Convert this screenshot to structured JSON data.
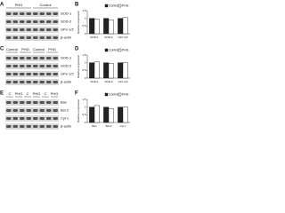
{
  "blots": [
    {
      "panel": "A",
      "groups": [
        "PHG",
        "Control"
      ],
      "rows": [
        "SOD-1",
        "SOD-2",
        "GPx-1/2",
        "β-actin"
      ]
    },
    {
      "panel": "C",
      "groups": [
        "Control",
        "PHG",
        "Control",
        "PHG"
      ],
      "rows": [
        "SOD-1",
        "SOD-2",
        "GPx-1/2",
        "β-actin"
      ]
    },
    {
      "panel": "E",
      "groups": [
        "C",
        "PHG",
        "C",
        "PHG",
        "C",
        "PHG"
      ],
      "rows": [
        "Bax",
        "Bcl-2",
        "Cyt c",
        "β-actin"
      ]
    }
  ],
  "chart_data": [
    {
      "type": "bar",
      "panel": "B",
      "ylabel": "Relative expression",
      "categories": [
        "SOD-1",
        "SOD-2",
        "GPx-1/2"
      ],
      "series": [
        {
          "name": "Control",
          "color": "#222222",
          "values": [
            1,
            1,
            1
          ]
        },
        {
          "name": "PHG",
          "color": "#ffffff",
          "values": [
            0.95,
            0.9,
            1.05
          ]
        }
      ],
      "ylim": [
        0,
        1.5
      ],
      "yticks": [
        0,
        0.5,
        1,
        1.5
      ]
    },
    {
      "type": "bar",
      "panel": "D",
      "ylabel": "Relative expression",
      "categories": [
        "SOD-1",
        "SOD-2",
        "GPx-1/2"
      ],
      "series": [
        {
          "name": "Control",
          "color": "#222222",
          "values": [
            1,
            1,
            1
          ]
        },
        {
          "name": "PHG",
          "color": "#ffffff",
          "values": [
            1.05,
            0.95,
            1
          ]
        }
      ],
      "ylim": [
        0,
        1.5
      ],
      "yticks": [
        0,
        0.5,
        1,
        1.5
      ]
    },
    {
      "type": "bar",
      "panel": "F",
      "ylabel": "Relative expression",
      "categories": [
        "Bax",
        "Bcl-2",
        "Cyt c"
      ],
      "series": [
        {
          "name": "Control",
          "color": "#222222",
          "values": [
            1,
            1,
            1
          ]
        },
        {
          "name": "PHG",
          "color": "#ffffff",
          "values": [
            1.1,
            0.9,
            1
          ]
        }
      ],
      "ylim": [
        0,
        1.5
      ],
      "yticks": [
        0,
        0.5,
        1,
        1.5
      ]
    }
  ]
}
